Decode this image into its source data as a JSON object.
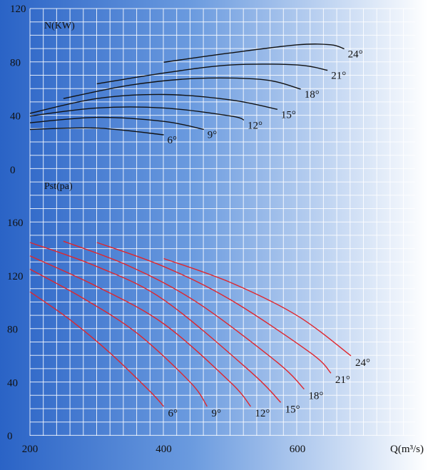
{
  "chart_data": [
    {
      "type": "line",
      "title": "",
      "ylabel": "N(KW)",
      "xlabel": "",
      "ylim": [
        0,
        120
      ],
      "yticks": [
        0,
        40,
        80,
        120
      ],
      "grid": true,
      "series": [
        {
          "name": "6°",
          "x": [
            200,
            300,
            400
          ],
          "y": [
            30,
            31,
            26
          ]
        },
        {
          "name": "9°",
          "x": [
            200,
            300,
            400,
            460
          ],
          "y": [
            35,
            39,
            36,
            30
          ]
        },
        {
          "name": "12°",
          "x": [
            200,
            300,
            400,
            500,
            520
          ],
          "y": [
            40,
            46,
            46,
            40,
            37
          ]
        },
        {
          "name": "15°",
          "x": [
            200,
            300,
            400,
            500,
            570
          ],
          "y": [
            42,
            53,
            56,
            52,
            45
          ]
        },
        {
          "name": "18°",
          "x": [
            250,
            350,
            450,
            550,
            605
          ],
          "y": [
            53,
            63,
            68,
            67,
            60
          ]
        },
        {
          "name": "21°",
          "x": [
            300,
            400,
            500,
            600,
            645
          ],
          "y": [
            64,
            72,
            78,
            78,
            74
          ]
        },
        {
          "name": "24°",
          "x": [
            400,
            500,
            600,
            650,
            670
          ],
          "y": [
            80,
            87,
            93,
            93,
            90
          ]
        }
      ]
    },
    {
      "type": "line",
      "title": "",
      "ylabel": "Pst(pa)",
      "xlabel": "Q(m³/s)",
      "xlim": [
        200,
        700
      ],
      "xticks": [
        200,
        400,
        600
      ],
      "ylim": [
        0,
        160
      ],
      "yticks": [
        0,
        40,
        80,
        120,
        160
      ],
      "grid": true,
      "series": [
        {
          "name": "6°",
          "x": [
            200,
            260,
            320,
            380,
            400
          ],
          "y": [
            108,
            87,
            62,
            33,
            22
          ]
        },
        {
          "name": "9°",
          "x": [
            200,
            280,
            360,
            440,
            465
          ],
          "y": [
            125,
            103,
            77,
            40,
            22
          ]
        },
        {
          "name": "12°",
          "x": [
            200,
            300,
            400,
            500,
            530
          ],
          "y": [
            135,
            112,
            84,
            40,
            22
          ]
        },
        {
          "name": "15°",
          "x": [
            200,
            300,
            400,
            530,
            575
          ],
          "y": [
            145,
            127,
            102,
            48,
            25
          ]
        },
        {
          "name": "18°",
          "x": [
            250,
            350,
            450,
            570,
            610
          ],
          "y": [
            146,
            127,
            100,
            55,
            35
          ]
        },
        {
          "name": "21°",
          "x": [
            300,
            400,
            500,
            620,
            650
          ],
          "y": [
            145,
            127,
            102,
            62,
            47
          ]
        },
        {
          "name": "24°",
          "x": [
            400,
            500,
            600,
            680
          ],
          "y": [
            133,
            115,
            90,
            60
          ]
        }
      ]
    }
  ],
  "colors": {
    "background": "#2f6fd2",
    "grid": "#ffffff",
    "power_curve": "#111111",
    "pressure_curve": "#e0262c",
    "text": "#111111"
  }
}
